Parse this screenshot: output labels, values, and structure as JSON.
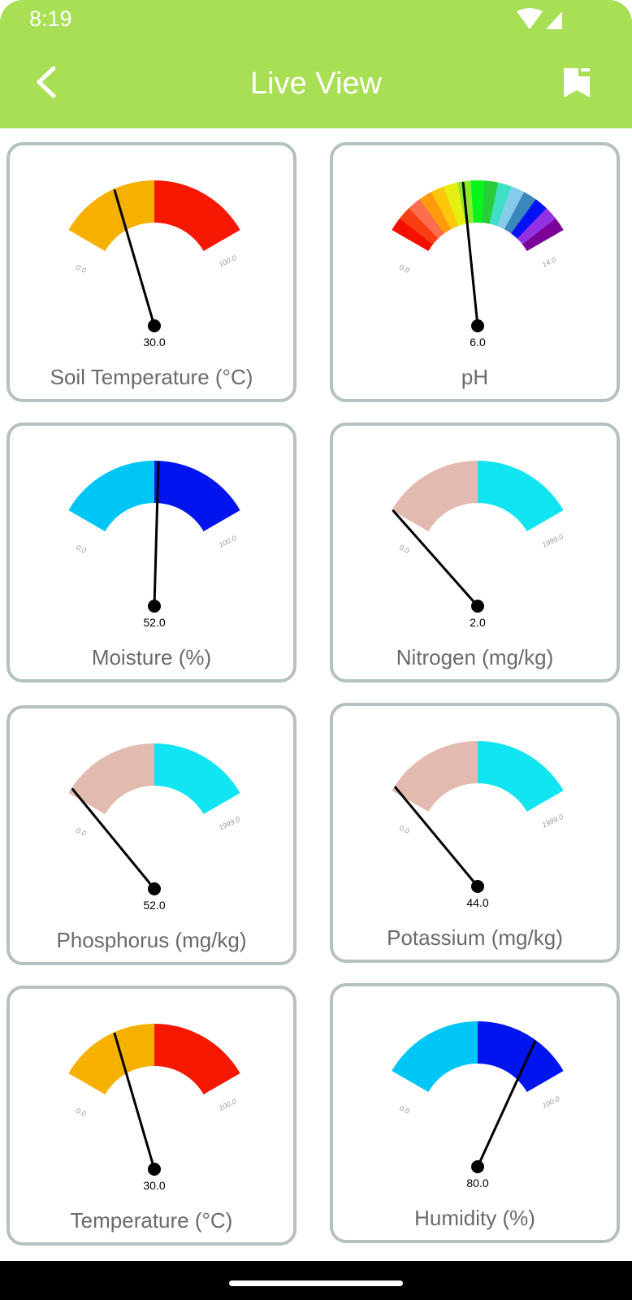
{
  "status_bar": {
    "time": "8:19"
  },
  "app_bar": {
    "title": "Live View"
  },
  "gauges": [
    {
      "label": "Soil Temperature (°C)",
      "value": 30.0,
      "display": "30.0",
      "min": 0,
      "max": 100,
      "min_label": "0.0",
      "max_label": "100.0",
      "colors": [
        "#f5b000",
        "#f51800"
      ]
    },
    {
      "label": "pH",
      "value": 6.0,
      "display": "6.0",
      "min": 0,
      "max": 14,
      "min_label": "0.0",
      "max_label": "14.0",
      "colors": [
        "#f50f00",
        "#f83e12",
        "#fd6e4e",
        "#ff9a0e",
        "#ffc70c",
        "#e5f012",
        "#8bea2c",
        "#05f61a",
        "#29cd3a",
        "#3fdfc5",
        "#83ccec",
        "#3b86bb",
        "#0012f3",
        "#9232e3",
        "#7a0097"
      ]
    },
    {
      "label": "Moisture (%)",
      "value": 52.0,
      "display": "52.0",
      "min": 0,
      "max": 100,
      "min_label": "0.0",
      "max_label": "100.0",
      "colors": [
        "#00c6f5",
        "#0014ee"
      ]
    },
    {
      "label": "Nitrogen (mg/kg)",
      "value": 2.0,
      "display": "2.0",
      "min": 0,
      "max": 1999,
      "min_label": "0.0",
      "max_label": "1999.0",
      "colors": [
        "#e3bab0",
        "#12e5f2"
      ]
    },
    {
      "label": "Phosphorus (mg/kg)",
      "value": 52.0,
      "display": "52.0",
      "min": 0,
      "max": 1999,
      "min_label": "0.0",
      "max_label": "1999.0",
      "colors": [
        "#e3bab0",
        "#12e5f2"
      ]
    },
    {
      "label": "Potassium (mg/kg)",
      "value": 44.0,
      "display": "44.0",
      "min": 0,
      "max": 1999,
      "min_label": "0.0",
      "max_label": "1999.0",
      "colors": [
        "#e3bab0",
        "#12e5f2"
      ]
    },
    {
      "label": "Temperature (°C)",
      "value": 30.0,
      "display": "30.0",
      "min": 0,
      "max": 100,
      "min_label": "0.0",
      "max_label": "100.0",
      "colors": [
        "#f5b000",
        "#f51800"
      ]
    },
    {
      "label": "Humidity (%)",
      "value": 80.0,
      "display": "80.0",
      "min": 0,
      "max": 100,
      "min_label": "0.0",
      "max_label": "100.0",
      "colors": [
        "#00c6f5",
        "#0014ee"
      ]
    }
  ],
  "icons": {
    "back": "back-arrow-icon",
    "bookmark": "bookmark-icon",
    "wifi": "wifi-icon",
    "signal": "cell-signal-icon"
  },
  "theme": {
    "accent": "#a8df55",
    "card_border": "#b5c0c1"
  }
}
